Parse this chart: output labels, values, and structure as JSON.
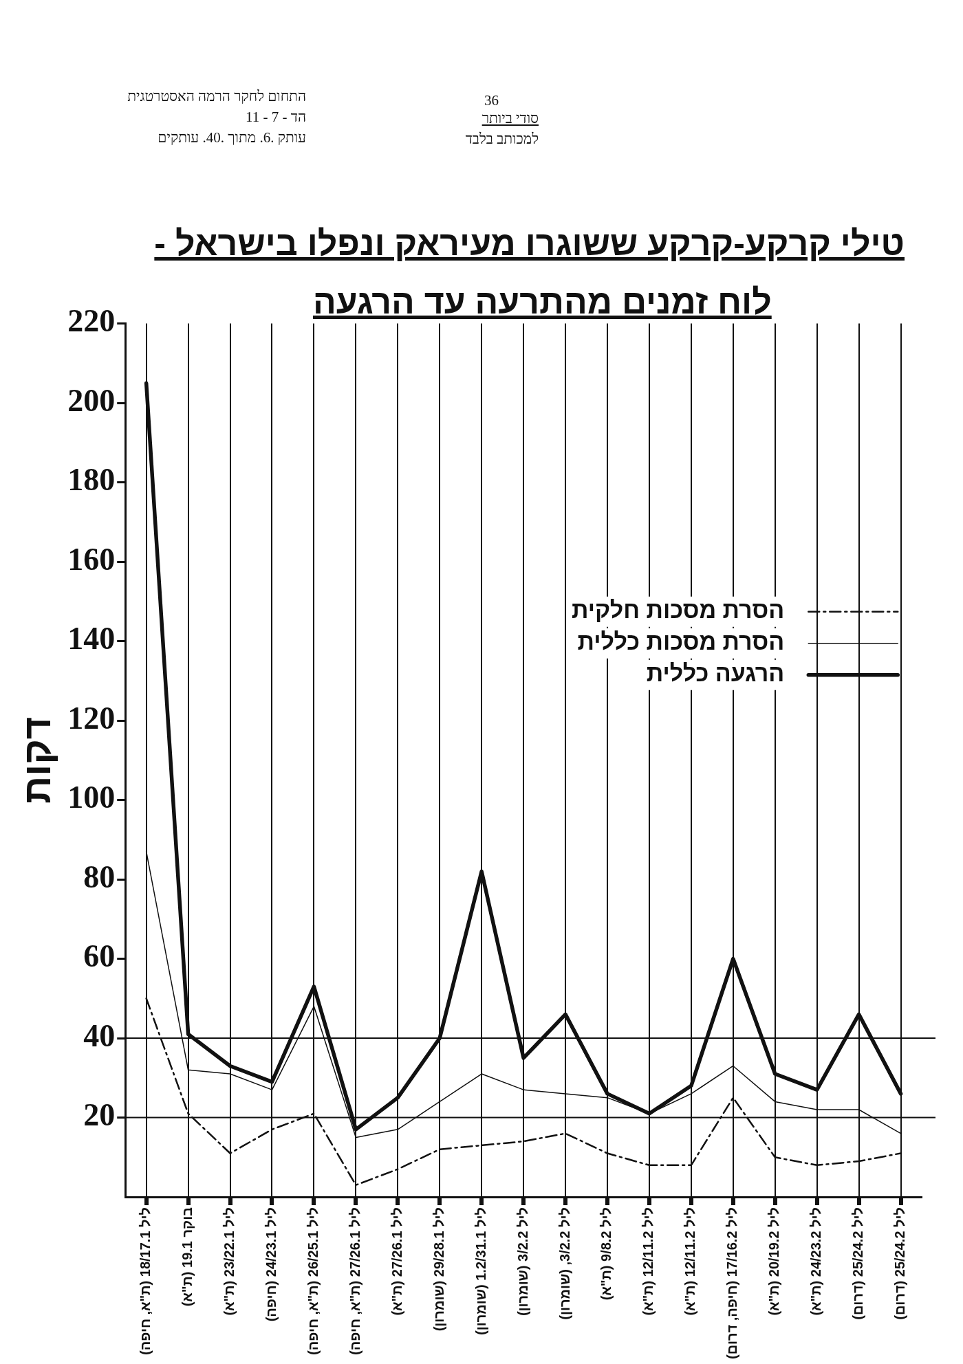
{
  "chart_data": {
    "type": "line",
    "title": "טילי קרקע-קרקע ששוגרו מעיראק ונפלו בישראל -",
    "subtitle": "לוח זמנים מהתרעה עד הרגעה",
    "ylabel": "דקות",
    "annotations": [
      "התחום לחקר הרמה האסטרטגית",
      "הד - 7 - 11",
      "עותק .6. מתוך .40. עותקים",
      "36",
      "סודי ביותר",
      "למכותב בלבד"
    ],
    "categories": [
      "ליל 18/17.1 (ת\"א, חיפה)",
      "בוקר 19.1 (ת\"א)",
      "ליל 23/22.1 (ת\"א)",
      "ליל 24/23.1 (חיפה)",
      "ליל 26/25.1 (ת\"א, חיפה)",
      "ליל 27/26.1 (ת\"א, חיפה)",
      "ליל 27/26.1 (ת\"א)",
      "ליל 29/28.1 (שומרון)",
      "ליל 1.2/31.1 (שומרון)",
      "ליל 3/2.2 (שומרון)",
      "ליל 3/2.2, (שומרון)",
      "ליל 9/8.2 (ת\"א)",
      "ליל 12/11.2 (ת\"א)",
      "ליל 12/11.2 (ת\"א)",
      "ליל 17/16.2 (חיפה, דרום)",
      "ליל 20/19.2 (ת\"א)",
      "ליל 24/23.2 (ת\"א)",
      "ליל 25/24.2 (דרום)",
      "ליל 25/24.2 (דרום)"
    ],
    "series": [
      {
        "name": "הסרת מסכות חלקית",
        "color": "#111111",
        "line_style": "dashed",
        "values": [
          50,
          21,
          11,
          17,
          21,
          3,
          7,
          12,
          13,
          14,
          16,
          11,
          8,
          8,
          25,
          10,
          8,
          9,
          11
        ]
      },
      {
        "name": "הסרת מסכות כללית",
        "color": "#111111",
        "line_style": "solid",
        "values": [
          87,
          32,
          31,
          27,
          48,
          15,
          17,
          24,
          31,
          27,
          26,
          25,
          21,
          26,
          33,
          24,
          22,
          22,
          16
        ]
      },
      {
        "name": "הרגעה כללית",
        "color": "#111111",
        "line_style": "solid",
        "values": [
          205,
          41,
          33,
          29,
          53,
          17,
          25,
          40,
          82,
          35,
          46,
          26,
          21,
          28,
          60,
          31,
          27,
          46,
          26
        ]
      }
    ],
    "ylim": [
      0,
      220
    ],
    "yticks": [
      20,
      40,
      60,
      80,
      100,
      120,
      140,
      160,
      180,
      200,
      220
    ],
    "ref_lines": [
      {
        "axis": "y",
        "value": 20
      },
      {
        "axis": "y",
        "value": 40
      }
    ],
    "grid": "x",
    "legend": "right",
    "marker": "none"
  }
}
